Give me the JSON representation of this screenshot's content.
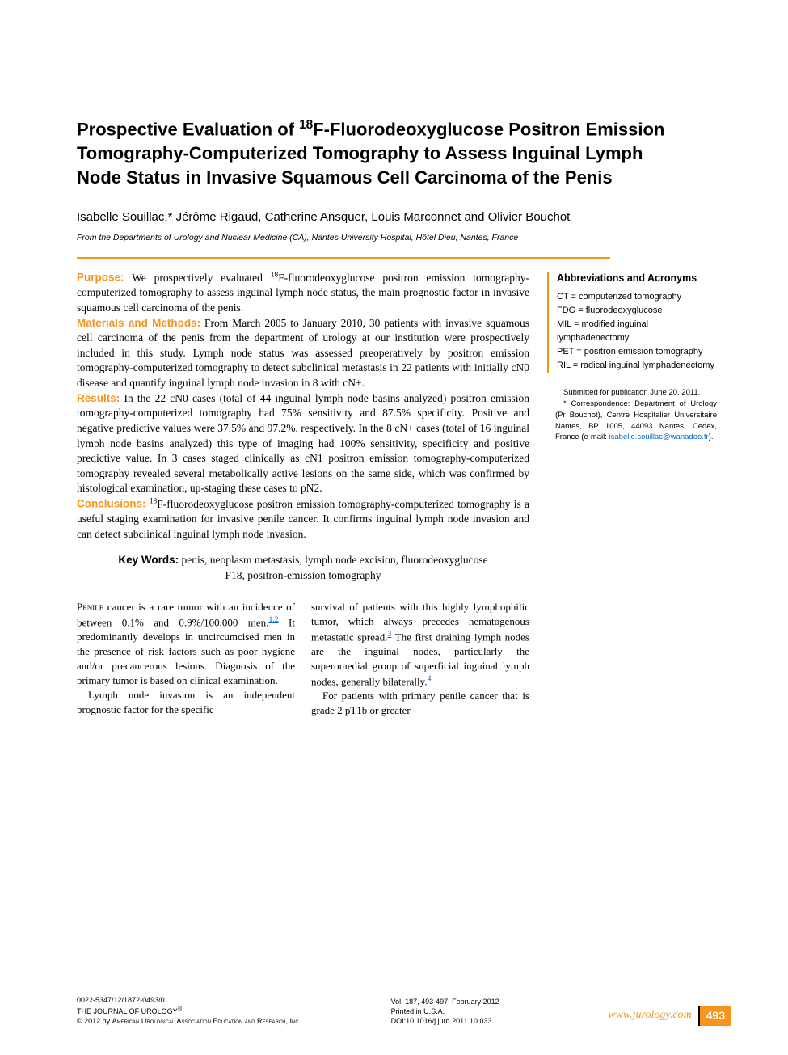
{
  "title_html": "Prospective Evaluation of <sup>18</sup>F-Fluorodeoxyglucose Positron Emission Tomography-Computerized Tomography to Assess Inguinal Lymph Node Status in Invasive Squamous Cell Carcinoma of the Penis",
  "authors": "Isabelle Souillac,* Jérôme Rigaud, Catherine Ansquer, Louis Marconnet and Olivier Bouchot",
  "affiliation": "From the Departments of Urology and Nuclear Medicine (CA), Nantes University Hospital, Hôtel Dieu, Nantes, France",
  "abstract": {
    "purpose": {
      "label": "Purpose:",
      "text_html": " We prospectively evaluated <sup>18</sup>F-fluorodeoxyglucose positron emission tomography-computerized tomography to assess inguinal lymph node status, the main prognostic factor in invasive squamous cell carcinoma of the penis."
    },
    "methods": {
      "label": "Materials and Methods:",
      "text": " From March 2005 to January 2010, 30 patients with invasive squamous cell carcinoma of the penis from the department of urology at our institution were prospectively included in this study. Lymph node status was assessed preoperatively by positron emission tomography-computerized tomography to detect subclinical metastasis in 22 patients with initially cN0 disease and quantify inguinal lymph node invasion in 8 with cN+."
    },
    "results": {
      "label": "Results:",
      "text": " In the 22 cN0 cases (total of 44 inguinal lymph node basins analyzed) positron emission tomography-computerized tomography had 75% sensitivity and 87.5% specificity. Positive and negative predictive values were 37.5% and 97.2%, respectively. In the 8 cN+ cases (total of 16 inguinal lymph node basins analyzed) this type of imaging had 100% sensitivity, specificity and positive predictive value. In 3 cases staged clinically as cN1 positron emission tomography-computerized tomography revealed several metabolically active lesions on the same side, which was confirmed by histological examination, up-staging these cases to pN2."
    },
    "conclusions": {
      "label": "Conclusions:",
      "text_html": " <sup>18</sup>F-fluorodeoxyglucose positron emission tomography-computerized tomography is a useful staging examination for invasive penile cancer. It confirms inguinal lymph node invasion and can detect subclinical inguinal lymph node invasion."
    }
  },
  "keywords": {
    "label": "Key Words:",
    "text": " penis, neoplasm metastasis, lymph node excision, fluorodeoxyglucose F18, positron-emission tomography"
  },
  "abbrev": {
    "heading": "Abbreviations and Acronyms",
    "items": [
      "CT = computerized tomography",
      "FDG = fluorodeoxyglucose",
      "MIL = modified inguinal lymphadenectomy",
      "PET = positron emission tomography",
      "RIL = radical inguinal lymphadenectomy"
    ]
  },
  "correspondence": {
    "submitted": "Submitted for publication June 20, 2011.",
    "corr_html": "* Correspondence: Department of Urology (Pr Bouchot), Centre Hospitalier Universitaire Nantes, BP 1005, 44093 Nantes, Cedex, France (e-mail: <a class='email-link' href='#'>isabelle.souillac@wanadoo.fr</a>)."
  },
  "body": {
    "col1_p1_html": "<span class='smallcaps'>Penile</span> cancer is a rare tumor with an incidence of between 0.1% and 0.9%/100,000 men.<a class='ref-link' href='#'>1,2</a> It predominantly develops in uncircumcised men in the presence of risk factors such as poor hygiene and/or precancerous lesions. Diagnosis of the primary tumor is based on clinical examination.",
    "col1_p2": "Lymph node invasion is an independent prognostic factor for the specific",
    "col2_p1_html": "survival of patients with this highly lymphophilic tumor, which always precedes hematogenous metastatic spread.<a class='ref-link' href='#'>3</a> The first draining lymph nodes are the inguinal nodes, particularly the superomedial group of superficial inguinal lymph nodes, generally bilaterally.<a class='ref-link' href='#'>4</a>",
    "col2_p2": "For patients with primary penile cancer that is grade 2 pT1b or greater"
  },
  "footer": {
    "left_l1": "0022-5347/12/1872-0493/0",
    "left_l2_html": "THE JOURNAL OF UROLOGY<sup>®</sup>",
    "left_l3_html": "© 2012 by <span style='font-variant:small-caps'>American Urological Association Education and Research, Inc.</span>",
    "mid_l1": "Vol. 187, 493-497, February 2012",
    "mid_l2": "Printed in U.S.A.",
    "mid_l3": "DOI:10.1016/j.juro.2011.10.033",
    "site": "www.jurology.com",
    "page": "493"
  },
  "colors": {
    "accent": "#f7941d",
    "link": "#0066cc",
    "text": "#000000",
    "background": "#ffffff"
  }
}
